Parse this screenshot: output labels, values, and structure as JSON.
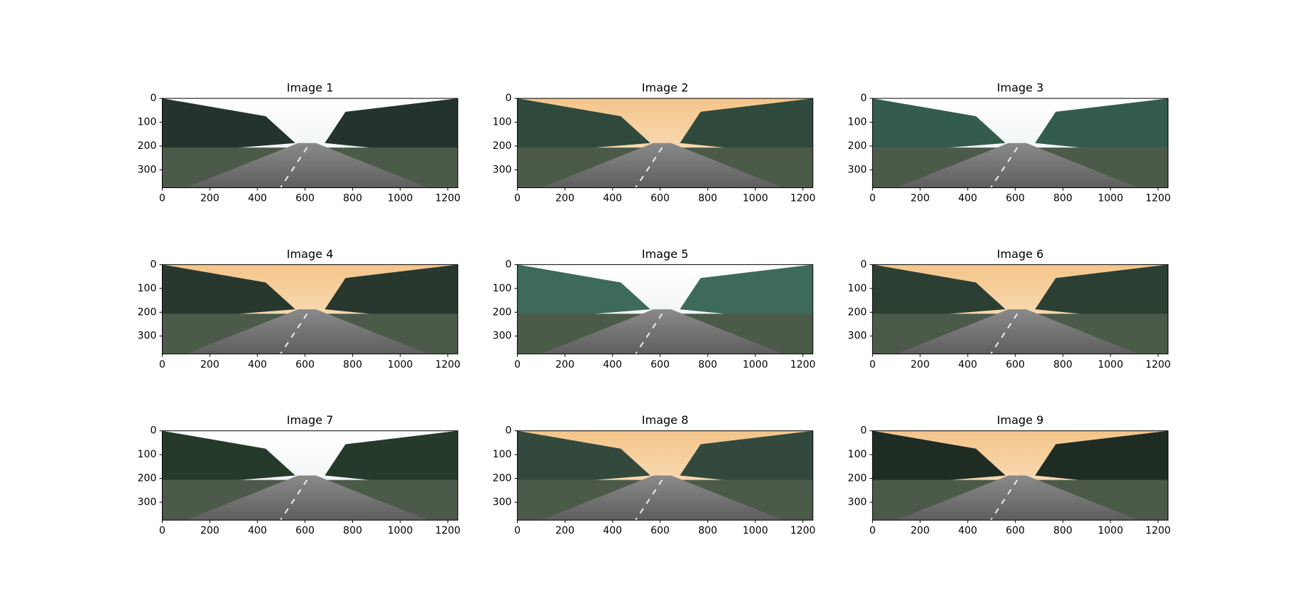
{
  "chart_data": [
    {
      "type": "image",
      "title": "Image 1",
      "xlim": [
        0,
        1242
      ],
      "ylim": [
        375,
        0
      ],
      "xticks": [
        0,
        200,
        400,
        600,
        800,
        1000,
        1200
      ],
      "yticks": [
        0,
        100,
        200,
        300
      ]
    },
    {
      "type": "image",
      "title": "Image 2",
      "xlim": [
        0,
        1242
      ],
      "ylim": [
        375,
        0
      ],
      "xticks": [
        0,
        200,
        400,
        600,
        800,
        1000,
        1200
      ],
      "yticks": [
        0,
        100,
        200,
        300
      ]
    },
    {
      "type": "image",
      "title": "Image 3",
      "xlim": [
        0,
        1242
      ],
      "ylim": [
        375,
        0
      ],
      "xticks": [
        0,
        200,
        400,
        600,
        800,
        1000,
        1200
      ],
      "yticks": [
        0,
        100,
        200,
        300
      ]
    },
    {
      "type": "image",
      "title": "Image 4",
      "xlim": [
        0,
        1242
      ],
      "ylim": [
        375,
        0
      ],
      "xticks": [
        0,
        200,
        400,
        600,
        800,
        1000,
        1200
      ],
      "yticks": [
        0,
        100,
        200,
        300
      ]
    },
    {
      "type": "image",
      "title": "Image 5",
      "xlim": [
        0,
        1242
      ],
      "ylim": [
        375,
        0
      ],
      "xticks": [
        0,
        200,
        400,
        600,
        800,
        1000,
        1200
      ],
      "yticks": [
        0,
        100,
        200,
        300
      ]
    },
    {
      "type": "image",
      "title": "Image 6",
      "xlim": [
        0,
        1242
      ],
      "ylim": [
        375,
        0
      ],
      "xticks": [
        0,
        200,
        400,
        600,
        800,
        1000,
        1200
      ],
      "yticks": [
        0,
        100,
        200,
        300
      ]
    },
    {
      "type": "image",
      "title": "Image 7",
      "xlim": [
        0,
        1242
      ],
      "ylim": [
        375,
        0
      ],
      "xticks": [
        0,
        200,
        400,
        600,
        800,
        1000,
        1200
      ],
      "yticks": [
        0,
        100,
        200,
        300
      ]
    },
    {
      "type": "image",
      "title": "Image 8",
      "xlim": [
        0,
        1242
      ],
      "ylim": [
        375,
        0
      ],
      "xticks": [
        0,
        200,
        400,
        600,
        800,
        1000,
        1200
      ],
      "yticks": [
        0,
        100,
        200,
        300
      ]
    },
    {
      "type": "image",
      "title": "Image 9",
      "xlim": [
        0,
        1242
      ],
      "ylim": [
        375,
        0
      ],
      "xticks": [
        0,
        200,
        400,
        600,
        800,
        1000,
        1200
      ],
      "yticks": [
        0,
        100,
        200,
        300
      ]
    }
  ]
}
